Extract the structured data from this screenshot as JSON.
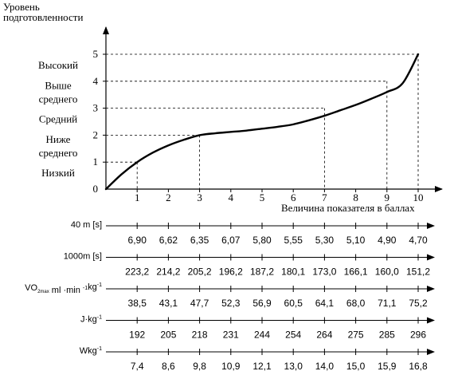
{
  "chart_data": [
    {
      "type": "line",
      "title": "",
      "ylabel_line1": "Уровень",
      "ylabel_line2": "подготовленности",
      "xlabel": "Величина показателя в баллах",
      "x_ticks": [
        "1",
        "2",
        "3",
        "4",
        "5",
        "6",
        "7",
        "8",
        "9",
        "10"
      ],
      "y_ticks": [
        "0",
        "1",
        "2",
        "3",
        "4",
        "5"
      ],
      "origin_label": "0",
      "xlim": [
        0,
        10
      ],
      "ylim": [
        0,
        5
      ],
      "levels": [
        {
          "lines": [
            "Высокий"
          ],
          "value": 5
        },
        {
          "lines": [
            "Выше",
            "среднего"
          ],
          "value": 4
        },
        {
          "lines": [
            "Средний"
          ],
          "value": 3
        },
        {
          "lines": [
            "Ниже",
            "среднего"
          ],
          "value": 2
        },
        {
          "lines": [
            "Низкий"
          ],
          "value": 1
        }
      ],
      "series": [
        {
          "x": [
            0,
            0.5,
            1,
            1.5,
            2,
            2.5,
            3,
            3.5,
            4,
            4.5,
            5,
            5.5,
            6,
            6.5,
            7,
            7.5,
            8,
            8.5,
            9,
            9.5,
            10
          ],
          "y": [
            0,
            0.55,
            1,
            1.35,
            1.62,
            1.83,
            2.0,
            2.07,
            2.12,
            2.17,
            2.24,
            2.31,
            2.4,
            2.55,
            2.72,
            2.92,
            3.12,
            3.35,
            3.6,
            3.92,
            5.0
          ]
        }
      ],
      "guides": [
        {
          "x": 1,
          "y": 1
        },
        {
          "x": 3,
          "y": 2
        },
        {
          "x": 7,
          "y": 3
        },
        {
          "x": 9,
          "y": 4
        },
        {
          "x": 10,
          "y": 5
        }
      ]
    },
    {
      "type": "table",
      "scales": [
        {
          "label": "40 m [s]",
          "values": [
            "6,90",
            "6,62",
            "6,35",
            "6,07",
            "5,80",
            "5,55",
            "5,30",
            "5,10",
            "4,90",
            "4,70"
          ]
        },
        {
          "label": "1000m [s]",
          "values": [
            "223,2",
            "214,2",
            "205,2",
            "196,2",
            "187,2",
            "180,1",
            "173,0",
            "166,1",
            "160,0",
            "151,2"
          ]
        },
        {
          "label_parts": [
            "VO",
            "2max",
            " ml ·min ",
            "-1",
            "kg",
            "-1"
          ],
          "values": [
            "38,5",
            "43,1",
            "47,7",
            "52,3",
            "56,9",
            "60,5",
            "64,1",
            "68,0",
            "71,1",
            "75,2"
          ]
        },
        {
          "label_parts": [
            "J·kg",
            "-1"
          ],
          "values": [
            "192",
            "205",
            "218",
            "231",
            "244",
            "254",
            "264",
            "275",
            "285",
            "296"
          ]
        },
        {
          "label_parts": [
            "Wkg",
            "-1"
          ],
          "values": [
            "7,4",
            "8,6",
            "9,8",
            "10,9",
            "12,1",
            "13,0",
            "14,0",
            "15,0",
            "15,9",
            "16,8"
          ]
        }
      ]
    }
  ]
}
